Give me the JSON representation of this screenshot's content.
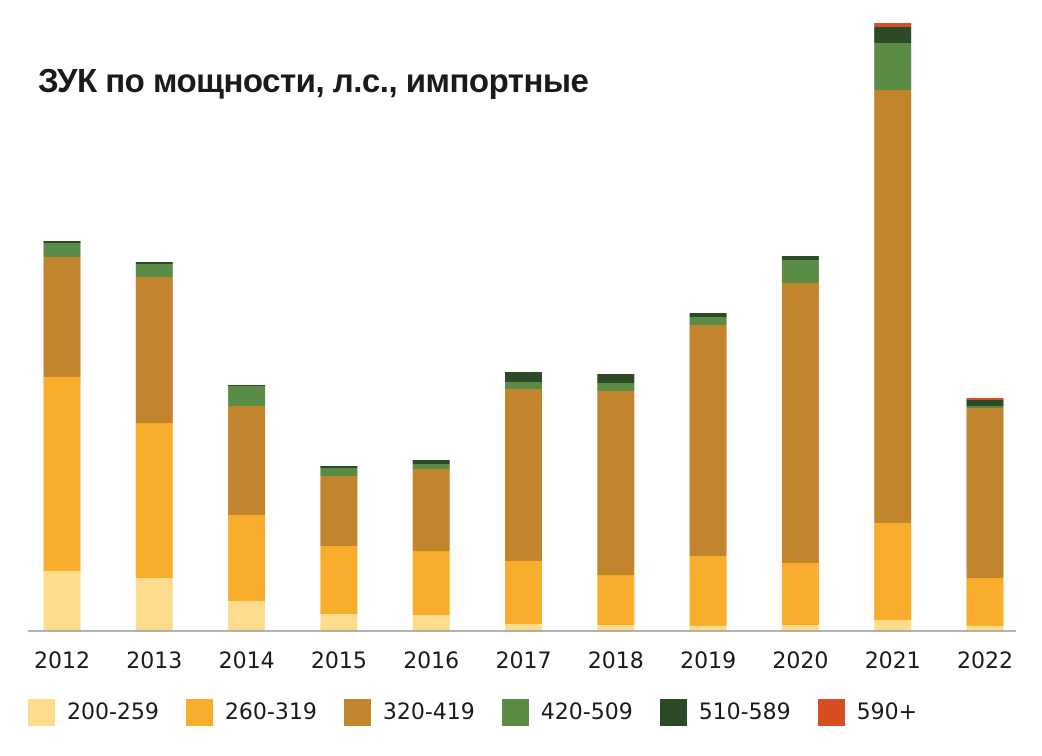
{
  "chart_data": {
    "type": "bar",
    "stacked": true,
    "title": "ЗУК по мощности, л.с., импортные",
    "xlabel": "",
    "ylabel": "",
    "ylim": [
      0,
      610
    ],
    "grid": false,
    "legend_position": "bottom",
    "categories": [
      "2012",
      "2013",
      "2014",
      "2015",
      "2016",
      "2017",
      "2018",
      "2019",
      "2020",
      "2021",
      "2022"
    ],
    "series": [
      {
        "name": "200-259",
        "color": "#fddc8e",
        "values": [
          60,
          53,
          30,
          17,
          16,
          7,
          6,
          5,
          6,
          11,
          5
        ]
      },
      {
        "name": "260-319",
        "color": "#f9ad2c",
        "values": [
          194,
          155,
          86,
          68,
          64,
          63,
          50,
          70,
          62,
          97,
          48
        ]
      },
      {
        "name": "320-419",
        "color": "#c3842e",
        "values": [
          120,
          146,
          109,
          70,
          82,
          172,
          184,
          231,
          280,
          433,
          170
        ]
      },
      {
        "name": "420-509",
        "color": "#5a8c45",
        "values": [
          14,
          13,
          20,
          8,
          5,
          7,
          8,
          8,
          23,
          47,
          2
        ]
      },
      {
        "name": "510-589",
        "color": "#2d4a26",
        "values": [
          2,
          2,
          1,
          2,
          4,
          10,
          9,
          4,
          4,
          16,
          6
        ]
      },
      {
        "name": "590+",
        "color": "#d64f23",
        "values": [
          0,
          0,
          0,
          0,
          0,
          0,
          0,
          0,
          0,
          4,
          2
        ]
      }
    ]
  }
}
